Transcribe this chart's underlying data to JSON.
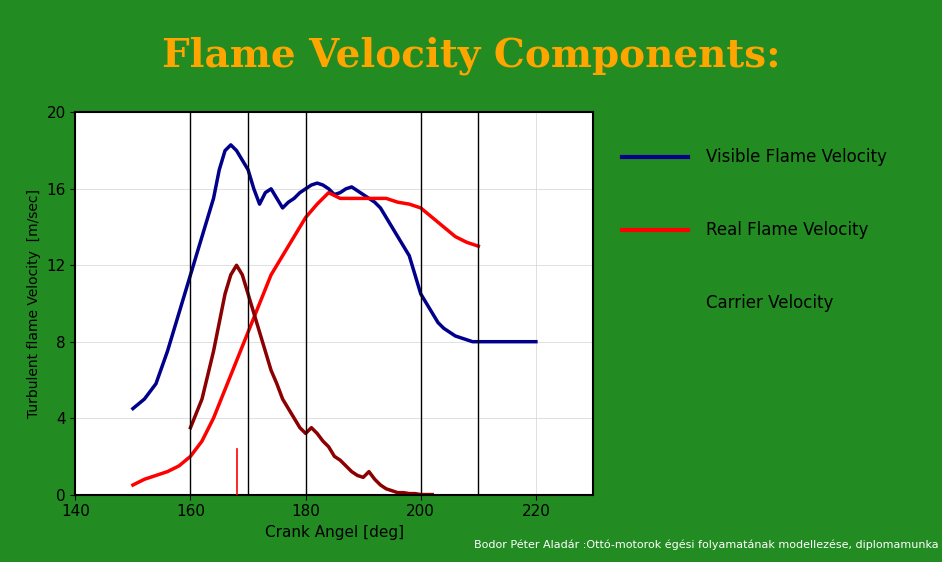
{
  "title": "Flame Velocity Components:",
  "title_color": "#FFA500",
  "title_fontsize": 28,
  "background_outer": "#228B22",
  "background_inner": "#FFFFFF",
  "xlabel": "Crank Angel [deg]",
  "ylabel": "Turbulent flame Velocity  [m/sec]",
  "xlim": [
    140,
    230
  ],
  "ylim": [
    0,
    20
  ],
  "xticks": [
    140,
    160,
    180,
    200,
    220
  ],
  "yticks": [
    0,
    4,
    8,
    12,
    16,
    20
  ],
  "vertical_lines": [
    160,
    170,
    180,
    200,
    210
  ],
  "small_red_line_x": 168,
  "legend_labels": [
    "Visible Flame Velocity",
    "Real Flame Velocity",
    "Carrier Velocity"
  ],
  "legend_colors": [
    "#00008B",
    "#FF0000",
    "#000000"
  ],
  "footer_text": "Bodor Péter Aladár :Ottó-motorok égési folyamatának modellezése, diplomamunka",
  "footer_bg": "#008000",
  "footer_color": "#FFFFFF",
  "blue_line": {
    "x": [
      150,
      152,
      154,
      156,
      158,
      160,
      162,
      164,
      165,
      166,
      167,
      168,
      169,
      170,
      171,
      172,
      173,
      174,
      175,
      176,
      177,
      178,
      179,
      180,
      181,
      182,
      183,
      184,
      185,
      186,
      187,
      188,
      189,
      190,
      191,
      192,
      193,
      194,
      195,
      196,
      197,
      198,
      199,
      200,
      201,
      202,
      203,
      204,
      205,
      206,
      207,
      208,
      209,
      210,
      212,
      214,
      216,
      218,
      220
    ],
    "y": [
      4.5,
      5.0,
      5.8,
      7.5,
      9.5,
      11.5,
      13.5,
      15.5,
      17.0,
      18.0,
      18.3,
      18.0,
      17.5,
      17.0,
      16.0,
      15.2,
      15.8,
      16.0,
      15.5,
      15.0,
      15.3,
      15.5,
      15.8,
      16.0,
      16.2,
      16.3,
      16.2,
      16.0,
      15.7,
      15.8,
      16.0,
      16.1,
      15.9,
      15.7,
      15.5,
      15.3,
      15.0,
      14.5,
      14.0,
      13.5,
      13.0,
      12.5,
      11.5,
      10.5,
      10.0,
      9.5,
      9.0,
      8.7,
      8.5,
      8.3,
      8.2,
      8.1,
      8.0,
      8.0,
      8.0,
      8.0,
      8.0,
      8.0,
      8.0
    ]
  },
  "red_line": {
    "x": [
      150,
      152,
      154,
      156,
      158,
      160,
      162,
      164,
      166,
      168,
      170,
      172,
      174,
      176,
      178,
      180,
      182,
      184,
      186,
      188,
      190,
      192,
      194,
      196,
      198,
      200,
      202,
      204,
      206,
      208,
      210
    ],
    "y": [
      0.5,
      0.8,
      1.0,
      1.2,
      1.5,
      2.0,
      2.8,
      4.0,
      5.5,
      7.0,
      8.5,
      10.0,
      11.5,
      12.5,
      13.5,
      14.5,
      15.2,
      15.8,
      15.5,
      15.5,
      15.5,
      15.5,
      15.5,
      15.3,
      15.2,
      15.0,
      14.5,
      14.0,
      13.5,
      13.2,
      13.0
    ]
  },
  "darkred_line": {
    "x": [
      160,
      162,
      164,
      165,
      166,
      167,
      168,
      169,
      170,
      171,
      172,
      173,
      174,
      175,
      176,
      177,
      178,
      179,
      180,
      181,
      182,
      183,
      184,
      185,
      186,
      187,
      188,
      189,
      190,
      191,
      192,
      193,
      194,
      195,
      196,
      197,
      198,
      199,
      200,
      201,
      202
    ],
    "y": [
      3.5,
      5.0,
      7.5,
      9.0,
      10.5,
      11.5,
      12.0,
      11.5,
      10.5,
      9.5,
      8.5,
      7.5,
      6.5,
      5.8,
      5.0,
      4.5,
      4.0,
      3.5,
      3.2,
      3.5,
      3.2,
      2.8,
      2.5,
      2.0,
      1.8,
      1.5,
      1.2,
      1.0,
      0.9,
      1.2,
      0.8,
      0.5,
      0.3,
      0.2,
      0.1,
      0.1,
      0.05,
      0.05,
      0.0,
      0.0,
      0.0
    ]
  }
}
